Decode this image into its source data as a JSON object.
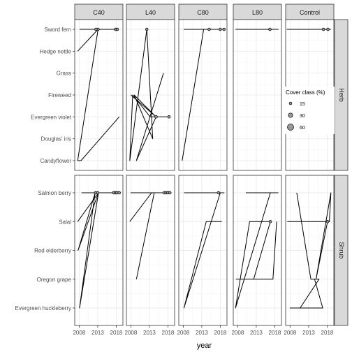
{
  "chart_data": {
    "type": "line",
    "xlabel": "year",
    "facet_cols": [
      "C40",
      "L40",
      "C80",
      "L80",
      "Control"
    ],
    "facet_rows": [
      "Herb",
      "Shrub"
    ],
    "x_ticks": [
      2008,
      2013,
      2018
    ],
    "xlim": [
      2006.8,
      2019.8
    ],
    "row_categories": {
      "Herb": [
        "Sword fern",
        "Hedge nettle",
        "Grass",
        "Fireweed",
        "Evergreen violet",
        "Douglas' iris",
        "Candyflower"
      ],
      "Shrub": [
        "Salmon berry",
        "Salal",
        "Red elderberry",
        "Oregon grape",
        "Evergreen huckleberry"
      ]
    },
    "legend": {
      "title": "Cover class (%)",
      "entries": [
        {
          "label": "15",
          "value": 15
        },
        {
          "label": "30",
          "value": 30
        },
        {
          "label": "60",
          "value": 60
        }
      ]
    },
    "panels": [
      {
        "row": "Herb",
        "col": "C40",
        "path": [
          [
            2007.6,
            "Hedge nettle"
          ],
          [
            2013.1,
            "Sword fern"
          ],
          [
            2008.2,
            "Sword fern"
          ],
          [
            2017.8,
            "Sword fern"
          ],
          [
            2013.1,
            "Sword fern"
          ],
          [
            2007.6,
            "Candyflower"
          ],
          [
            2008.5,
            "Candyflower"
          ],
          [
            2018.8,
            "Evergreen violet"
          ]
        ],
        "points": [
          [
            2013.1,
            "Sword fern",
            15
          ],
          [
            2012.5,
            "Sword fern",
            15
          ],
          [
            2017.8,
            "Sword fern",
            15
          ],
          [
            2018.3,
            "Sword fern",
            15
          ]
        ]
      },
      {
        "row": "Herb",
        "col": "L40",
        "path": [
          [
            2008.0,
            "Fireweed"
          ],
          [
            2014.8,
            "Evergreen violet"
          ],
          [
            2008.9,
            "Fireweed"
          ],
          [
            2013.9,
            "Douglas' iris"
          ],
          [
            2012.3,
            "Sword fern"
          ],
          [
            2007.7,
            "Candyflower"
          ],
          [
            2008.5,
            "Fireweed"
          ],
          [
            2013.2,
            "Evergreen violet"
          ],
          [
            2018.3,
            "Evergreen violet"
          ],
          [
            2014.8,
            "Evergreen violet"
          ],
          [
            2009.5,
            "Candyflower"
          ],
          [
            2016.8,
            "Grass"
          ]
        ],
        "points": [
          [
            2012.3,
            "Sword fern",
            15
          ],
          [
            2014.8,
            "Evergreen violet",
            15
          ],
          [
            2018.3,
            "Evergreen violet",
            15
          ]
        ]
      },
      {
        "row": "Herb",
        "col": "C80",
        "path": [
          [
            2007.7,
            "Candyflower"
          ],
          [
            2013.5,
            "Sword fern"
          ],
          [
            2008.2,
            "Sword fern"
          ],
          [
            2019.0,
            "Sword fern"
          ]
        ],
        "points": [
          [
            2015.0,
            "Sword fern",
            15
          ],
          [
            2018.0,
            "Sword fern",
            15
          ],
          [
            2019.0,
            "Sword fern",
            15
          ]
        ]
      },
      {
        "row": "Herb",
        "col": "L80",
        "path": [
          [
            2007.4,
            "Sword fern"
          ],
          [
            2019.0,
            "Sword fern"
          ]
        ],
        "points": [
          [
            2016.7,
            "Sword fern",
            15
          ]
        ]
      },
      {
        "row": "Herb",
        "col": "Control",
        "path": [
          [
            2007.1,
            "Sword fern"
          ],
          [
            2019.0,
            "Sword fern"
          ]
        ],
        "points": [
          [
            2017.0,
            "Sword fern",
            15
          ],
          [
            2018.2,
            "Sword fern",
            15
          ]
        ]
      },
      {
        "row": "Shrub",
        "col": "C40",
        "path": [
          [
            2007.6,
            "Salal"
          ],
          [
            2013.2,
            "Salmon berry"
          ],
          [
            2008.1,
            "Evergreen huckleberry"
          ],
          [
            2012.3,
            "Salmon berry"
          ],
          [
            2007.7,
            "Red elderberry"
          ],
          [
            2013.2,
            "Salmon berry"
          ],
          [
            2008.7,
            "Salmon berry"
          ],
          [
            2018.9,
            "Salmon berry"
          ]
        ],
        "points": [
          [
            2012.4,
            "Salmon berry",
            15
          ],
          [
            2013.0,
            "Salmon berry",
            15
          ],
          [
            2017.3,
            "Salmon berry",
            15
          ],
          [
            2017.8,
            "Salmon berry",
            15
          ],
          [
            2018.2,
            "Salmon berry",
            15
          ],
          [
            2018.8,
            "Salmon berry",
            15
          ]
        ]
      },
      {
        "row": "Shrub",
        "col": "L40",
        "path": [
          [
            2007.7,
            "Salal"
          ],
          [
            2013.6,
            "Salmon berry"
          ],
          [
            2008.0,
            "Salmon berry"
          ],
          [
            2018.9,
            "Salmon berry"
          ],
          [
            2014.3,
            "Salmon berry"
          ],
          [
            2009.5,
            "Oregon grape"
          ]
        ],
        "points": [
          [
            2017.0,
            "Salmon berry",
            15
          ],
          [
            2017.5,
            "Salmon berry",
            15
          ],
          [
            2018.0,
            "Salmon berry",
            15
          ],
          [
            2018.5,
            "Salmon berry",
            15
          ]
        ]
      },
      {
        "row": "Shrub",
        "col": "C80",
        "path": [
          [
            2008.2,
            "Salmon berry"
          ],
          [
            2019.0,
            "Salmon berry"
          ],
          [
            2018.0,
            "Salmon berry"
          ],
          [
            2018.0,
            "Salmon berry"
          ],
          [
            2008.2,
            "Evergreen huckleberry"
          ],
          [
            2014.2,
            "Salal"
          ],
          [
            2018.4,
            "Salal"
          ]
        ],
        "points": [
          [
            2017.5,
            "Salmon berry",
            15
          ]
        ]
      },
      {
        "row": "Shrub",
        "col": "L80",
        "path": [
          [
            2010.2,
            "Salmon berry"
          ],
          [
            2018.9,
            "Salmon berry"
          ],
          [
            2016.8,
            "Salmon berry"
          ],
          [
            2016.8,
            "Salmon berry"
          ],
          [
            2007.4,
            "Evergreen huckleberry"
          ],
          [
            2011.2,
            "Salal"
          ],
          [
            2016.8,
            "Salal"
          ],
          [
            2012.3,
            "Oregon grape"
          ],
          [
            2007.6,
            "Oregon grape"
          ],
          [
            2016.8,
            "Oregon grape"
          ],
          [
            2017.5,
            "Oregon grape"
          ],
          [
            2018.5,
            "Salal"
          ]
        ],
        "points": [
          [
            2016.8,
            "Salal",
            15
          ]
        ]
      },
      {
        "row": "Shrub",
        "col": "Control",
        "path": [
          [
            2009.8,
            "Salmon berry"
          ],
          [
            2013.6,
            "Oregon grape"
          ],
          [
            2015.8,
            "Oregon grape"
          ],
          [
            2010.7,
            "Evergreen huckleberry"
          ],
          [
            2008.0,
            "Evergreen huckleberry"
          ],
          [
            2016.8,
            "Evergreen huckleberry"
          ],
          [
            2014.6,
            "Oregon grape"
          ],
          [
            2015.0,
            "Oregon grape"
          ],
          [
            2018.1,
            "Salal"
          ],
          [
            2007.3,
            "Salal"
          ],
          [
            2018.6,
            "Salal"
          ],
          [
            2019.0,
            "Salmon berry"
          ],
          [
            2015.0,
            "Oregon grape"
          ]
        ],
        "points": [
          [
            2018.1,
            "Salal",
            15
          ]
        ]
      }
    ]
  }
}
